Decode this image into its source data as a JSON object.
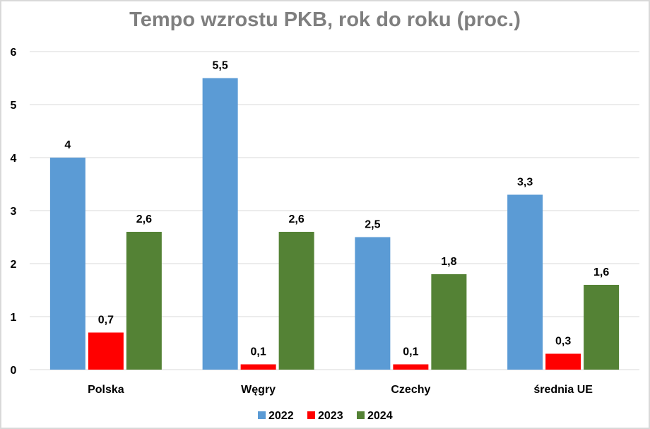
{
  "chart_data": {
    "type": "bar",
    "title": "Tempo wzrostu PKB, rok do roku (proc.)",
    "xlabel": "",
    "ylabel": "",
    "ylim": [
      0,
      6
    ],
    "yticks": [
      "0",
      "1",
      "2",
      "3",
      "4",
      "5",
      "6"
    ],
    "grid": true,
    "legend_position": "bottom",
    "categories": [
      "Polska",
      "Węgry",
      "Czechy",
      "średnia UE"
    ],
    "series": [
      {
        "name": "2022",
        "color": "#5b9bd5",
        "values": [
          4,
          5.5,
          2.5,
          3.3
        ],
        "labels": [
          "4",
          "5,5",
          "2,5",
          "3,3"
        ]
      },
      {
        "name": "2023",
        "color": "#ff0000",
        "values": [
          0.7,
          0.1,
          0.1,
          0.3
        ],
        "labels": [
          "0,7",
          "0,1",
          "0,1",
          "0,3"
        ]
      },
      {
        "name": "2024",
        "color": "#548235",
        "values": [
          2.6,
          2.6,
          1.8,
          1.6
        ],
        "labels": [
          "2,6",
          "2,6",
          "1,8",
          "1,6"
        ]
      }
    ]
  }
}
